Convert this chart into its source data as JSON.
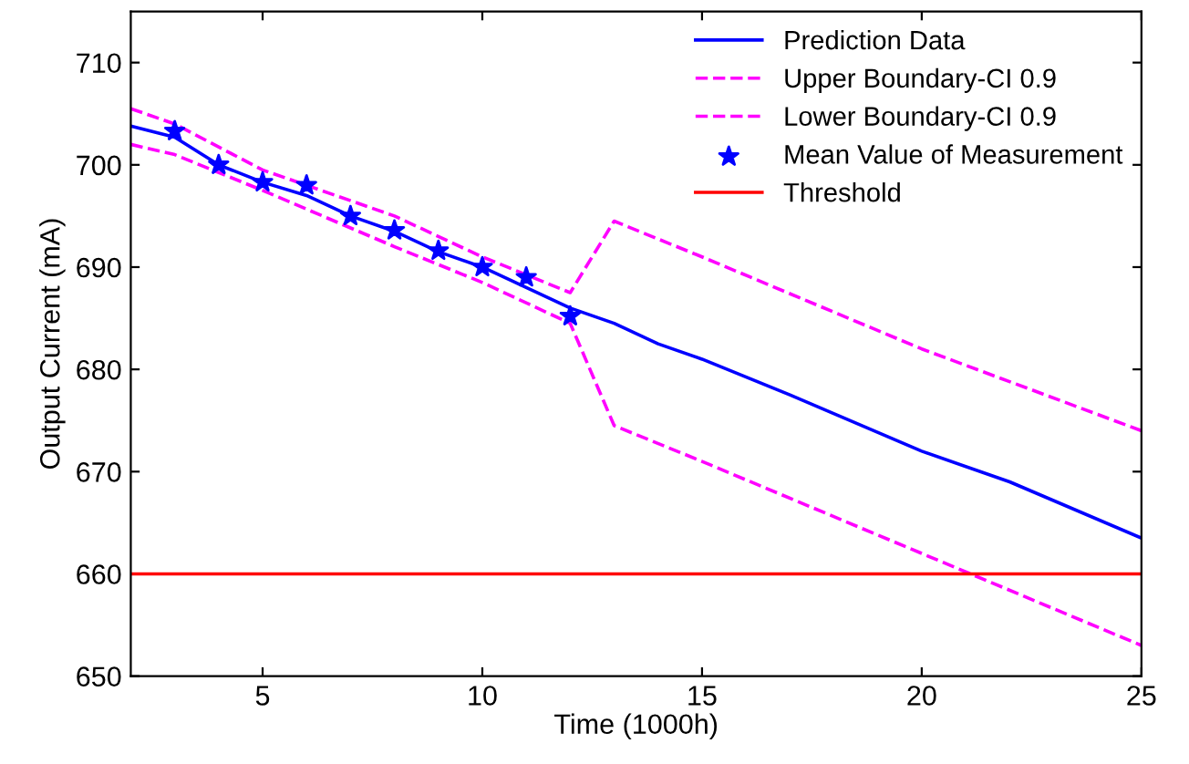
{
  "chart_data": {
    "type": "line",
    "xlabel": "Time (1000h)",
    "ylabel": "Output Current (mA)",
    "xlim": [
      2,
      25
    ],
    "xticks": [
      5,
      10,
      15,
      20,
      25
    ],
    "ylim": [
      650,
      715
    ],
    "yticks": [
      650,
      660,
      670,
      680,
      690,
      700,
      710
    ],
    "grid": false,
    "legend": "top right",
    "series": [
      {
        "name": "Prediction Data",
        "color": "#0000ff",
        "line_style": "solid",
        "marker": "none",
        "x": [
          2,
          3,
          4,
          5,
          6,
          7,
          8,
          9,
          10,
          11,
          12,
          13,
          14,
          15,
          17,
          20,
          22,
          25
        ],
        "values": [
          703.8,
          702.7,
          700,
          698.3,
          697,
          695,
          693.5,
          691.5,
          690,
          688,
          686,
          684.5,
          682.5,
          681,
          677.5,
          672,
          669,
          663.5
        ]
      },
      {
        "name": "Upper Boundary-CI 0.9",
        "color": "#ff00ff",
        "line_style": "dashed",
        "marker": "none",
        "x": [
          2,
          3,
          5,
          8,
          10,
          12,
          13,
          15,
          20,
          25
        ],
        "values": [
          705.5,
          704,
          699.5,
          695,
          691,
          687.5,
          694.5,
          691,
          682,
          674
        ]
      },
      {
        "name": "Lower Boundary-CI 0.9",
        "color": "#ff00ff",
        "line_style": "dashed",
        "marker": "none",
        "x": [
          2,
          3,
          5,
          8,
          10,
          12,
          13,
          15,
          20,
          25
        ],
        "values": [
          702,
          701,
          697.5,
          692,
          688.5,
          684.5,
          674.5,
          671,
          662,
          653
        ]
      },
      {
        "name": "Mean Value of Measurement",
        "type": "scatter",
        "color": "#0000ff",
        "marker": "star",
        "x": [
          3,
          4,
          5,
          6,
          7,
          8,
          9,
          10,
          11,
          12
        ],
        "values": [
          703.3,
          700,
          698.3,
          698,
          695,
          693.6,
          691.6,
          690,
          689,
          685.2
        ]
      }
    ],
    "ref_lines": [
      {
        "axis": "y",
        "value": 660,
        "label": "Threshold",
        "color": "#ff0000",
        "line_style": "solid"
      }
    ]
  }
}
